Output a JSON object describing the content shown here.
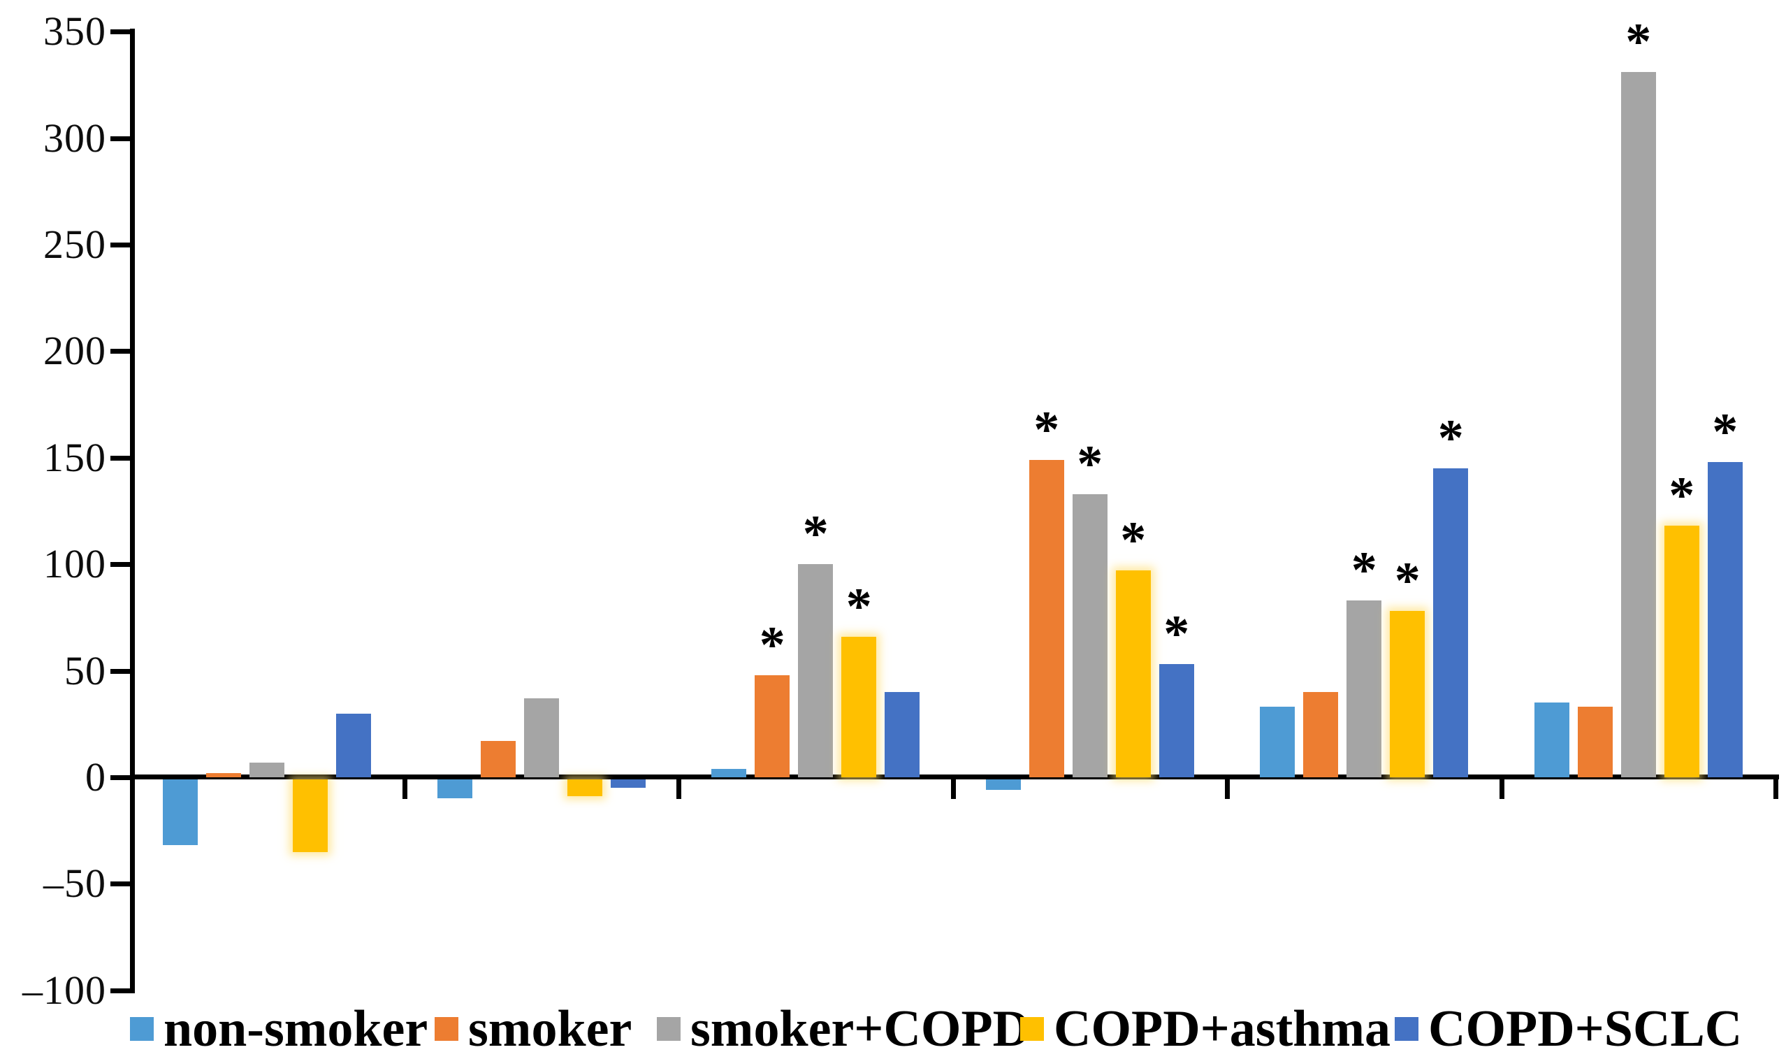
{
  "chart_data": {
    "type": "bar",
    "title": "",
    "categories": [
      "",
      "",
      "",
      "",
      "",
      ""
    ],
    "ylim": [
      -100,
      350
    ],
    "ytick_values": [
      350,
      300,
      250,
      200,
      150,
      100,
      50,
      0,
      -50,
      -100
    ],
    "ytick_labels": [
      "350",
      "300",
      "250",
      "200",
      "150",
      "100",
      "50",
      "0",
      "–50",
      "–100"
    ],
    "grid": false,
    "legend_position": "bottom",
    "significance_marker": "*",
    "series": [
      {
        "name": "non-smoker",
        "color": "#4E9BD4",
        "values": [
          -31,
          -9,
          4,
          -5,
          33,
          35
        ],
        "significant": [
          false,
          false,
          false,
          false,
          false,
          false
        ]
      },
      {
        "name": "smoker",
        "color": "#ED7D31",
        "values": [
          2,
          17,
          48,
          149,
          40,
          33
        ],
        "significant": [
          false,
          false,
          true,
          true,
          false,
          false
        ]
      },
      {
        "name": "smoker+COPD",
        "color": "#A5A5A5",
        "values": [
          7,
          37,
          100,
          133,
          83,
          331
        ],
        "significant": [
          false,
          false,
          true,
          true,
          true,
          true
        ]
      },
      {
        "name": "COPD+asthma",
        "color": "#FFC000",
        "values": [
          -34,
          -8,
          66,
          97,
          78,
          118
        ],
        "significant": [
          false,
          false,
          true,
          true,
          true,
          true
        ]
      },
      {
        "name": "COPD+SCLC",
        "color": "#4472C4",
        "values": [
          30,
          -4,
          40,
          53,
          145,
          148
        ],
        "significant": [
          false,
          false,
          false,
          true,
          true,
          true
        ]
      }
    ]
  }
}
